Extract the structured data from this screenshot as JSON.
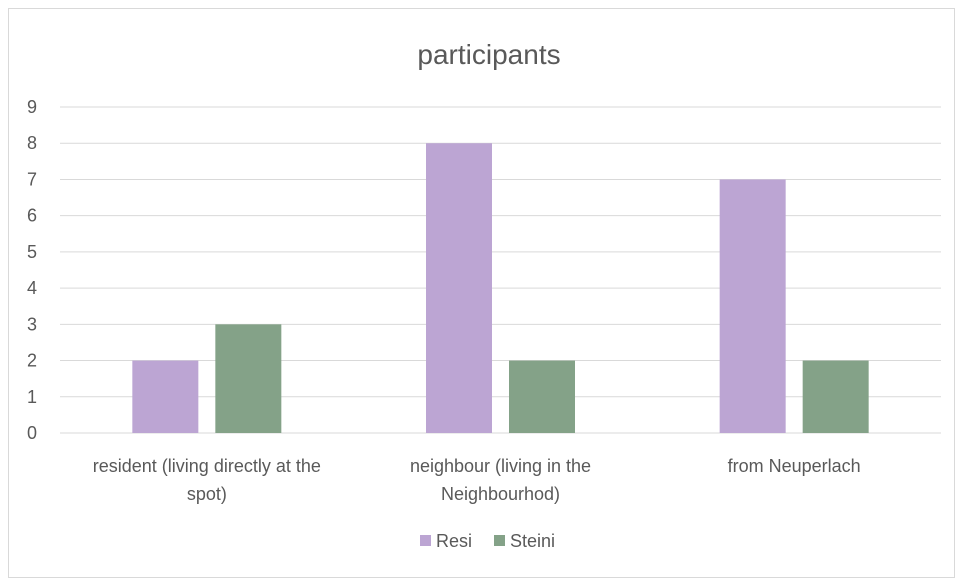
{
  "chart_data": {
    "type": "bar",
    "title": "participants",
    "categories": [
      [
        "resident (living directly at the",
        "spot)"
      ],
      [
        "neighbour (living in the",
        "Neighbourhod)"
      ],
      [
        "from Neuperlach"
      ]
    ],
    "series": [
      {
        "name": "Resi",
        "values": [
          2,
          8,
          7
        ],
        "color": "#bca5d3"
      },
      {
        "name": "Steini",
        "values": [
          3,
          2,
          2
        ],
        "color": "#84a288"
      }
    ],
    "ylim": [
      0,
      9
    ],
    "yticks": [
      0,
      1,
      2,
      3,
      4,
      5,
      6,
      7,
      8,
      9
    ],
    "grid": true,
    "legend": "bottom",
    "xlabel": "",
    "ylabel": ""
  }
}
